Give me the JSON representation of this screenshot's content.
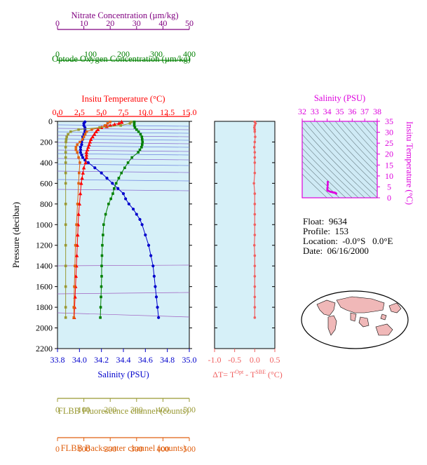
{
  "chart_data": [
    {
      "type": "line",
      "panel": "profile",
      "y_axis": {
        "label": "Pressure (decibar)",
        "range": [
          0,
          2200
        ],
        "inverted": true,
        "ticks": [
          "0",
          "200",
          "400",
          "600",
          "800",
          "1000",
          "1200",
          "1400",
          "1600",
          "1800",
          "2000",
          "2200"
        ]
      },
      "axes": [
        {
          "key": "nitrate",
          "label": "Nitrate Concentration (µm/kg)",
          "color": "#800080",
          "position": "top",
          "range": [
            0,
            50
          ],
          "ticks": [
            "0",
            "10",
            "20",
            "30",
            "40",
            "50"
          ]
        },
        {
          "key": "oxygen",
          "label": "Optode Oxygen Concentration (µm/kg)",
          "color": "#008000",
          "position": "top",
          "range": [
            0,
            400
          ],
          "ticks": [
            "0",
            "100",
            "200",
            "300",
            "400"
          ]
        },
        {
          "key": "temperature",
          "label": "Insitu Temperature (°C)",
          "color": "#ff0000",
          "position": "top",
          "range": [
            0,
            15
          ],
          "ticks": [
            "0.0",
            "2.5",
            "5.0",
            "7.5",
            "10.0",
            "12.5",
            "15.0"
          ]
        },
        {
          "key": "salinity",
          "label": "Salinity (PSU)",
          "color": "#0000cc",
          "position": "bottom",
          "range": [
            33.8,
            35.0
          ],
          "ticks": [
            "33.8",
            "34.0",
            "34.2",
            "34.4",
            "34.6",
            "34.8",
            "35.0"
          ]
        },
        {
          "key": "fluorescence",
          "label": "FLBB Fluorescence channel (counts)",
          "color": "#999933",
          "position": "bottom",
          "range": [
            0,
            500
          ],
          "ticks": [
            "0",
            "100",
            "200",
            "300",
            "400",
            "500"
          ]
        },
        {
          "key": "backscatter",
          "label": "FLBB Backscatter channel (counts)",
          "color": "#e06010",
          "position": "bottom",
          "range": [
            0,
            500
          ],
          "ticks": [
            "0",
            "100",
            "200",
            "300",
            "400",
            "500"
          ]
        }
      ],
      "series": [
        {
          "key": "salinity",
          "color": "#0000cc",
          "marker": "circle",
          "pressure": [
            5,
            20,
            40,
            60,
            80,
            100,
            125,
            150,
            175,
            200,
            225,
            250,
            275,
            300,
            325,
            350,
            375,
            400,
            450,
            500,
            550,
            600,
            650,
            700,
            750,
            800,
            850,
            900,
            950,
            1000,
            1100,
            1200,
            1300,
            1400,
            1500,
            1600,
            1700,
            1800,
            1900
          ],
          "values": [
            34.05,
            34.04,
            34.04,
            34.05,
            34.05,
            34.05,
            34.04,
            34.03,
            34.03,
            34.02,
            34.02,
            34.01,
            34.01,
            34.01,
            34.02,
            34.03,
            34.05,
            34.08,
            34.14,
            34.2,
            34.25,
            34.3,
            34.35,
            34.4,
            34.42,
            34.45,
            34.49,
            34.52,
            34.55,
            34.57,
            34.6,
            34.63,
            34.65,
            34.67,
            34.68,
            34.69,
            34.7,
            34.71,
            34.72
          ]
        },
        {
          "key": "temperature",
          "color": "#ff0000",
          "marker": "triangle",
          "pressure": [
            5,
            10,
            20,
            30,
            40,
            50,
            60,
            80,
            100,
            125,
            150,
            175,
            200,
            225,
            250,
            275,
            300,
            325,
            350,
            400,
            450,
            500,
            550,
            600,
            700,
            800,
            900,
            1000,
            1100,
            1200,
            1300,
            1400,
            1500,
            1600,
            1700,
            1800,
            1900
          ],
          "values": [
            7.3,
            7.3,
            7.0,
            6.5,
            6.0,
            5.6,
            5.0,
            4.6,
            4.4,
            4.2,
            4.0,
            3.8,
            3.7,
            3.6,
            3.5,
            3.4,
            3.3,
            3.3,
            3.3,
            3.2,
            3.0,
            2.9,
            2.8,
            2.7,
            2.6,
            2.5,
            2.4,
            2.35,
            2.3,
            2.25,
            2.2,
            2.15,
            2.1,
            2.05,
            2.0,
            1.95,
            1.9
          ]
        },
        {
          "key": "oxygen",
          "color": "#008000",
          "marker": "square",
          "pressure": [
            5,
            20,
            40,
            60,
            80,
            100,
            125,
            150,
            175,
            200,
            225,
            250,
            275,
            300,
            350,
            400,
            450,
            500,
            550,
            600,
            650,
            700,
            750,
            800,
            900,
            1000,
            1100,
            1200,
            1300,
            1400,
            1500,
            1600,
            1700,
            1800,
            1900
          ],
          "values": [
            233,
            233,
            233,
            235,
            240,
            246,
            252,
            256,
            257,
            258,
            257,
            255,
            250,
            245,
            226,
            214,
            204,
            194,
            186,
            178,
            172,
            168,
            162,
            155,
            146,
            140,
            138,
            136,
            135,
            134,
            134,
            133,
            132,
            131,
            130
          ]
        },
        {
          "key": "backscatter",
          "color": "#e06010",
          "marker": "square",
          "pressure": [
            5,
            20,
            40,
            60,
            80,
            100,
            125,
            150,
            175,
            200,
            225,
            250,
            275,
            300,
            350,
            400,
            500,
            600,
            800,
            1000,
            1200,
            1400,
            1600,
            1800,
            1900
          ],
          "values": [
            200,
            190,
            180,
            160,
            130,
            110,
            105,
            100,
            95,
            85,
            75,
            70,
            70,
            75,
            80,
            85,
            82,
            80,
            76,
            72,
            68,
            66,
            64,
            62,
            62
          ]
        },
        {
          "key": "fluorescence",
          "color": "#999933",
          "marker": "square",
          "pressure": [
            5,
            20,
            40,
            60,
            80,
            100,
            125,
            150,
            175,
            200,
            250,
            300,
            350,
            400,
            500,
            600,
            800,
            1000,
            1200,
            1400,
            1600,
            1800,
            1900
          ],
          "values": [
            280,
            275,
            240,
            160,
            80,
            50,
            40,
            35,
            33,
            32,
            31,
            31,
            31,
            31,
            31,
            31,
            31,
            31,
            31,
            31,
            31,
            31,
            31
          ]
        }
      ],
      "legend": "none"
    },
    {
      "type": "scatter",
      "panel": "delta_t",
      "xlabel": "ΔT= T^Opt - T^SBE (°C)",
      "color": "#f06060",
      "x_range": [
        -1.0,
        0.5
      ],
      "ticks": [
        "-1.0",
        "-0.5",
        "0.0",
        "0.5"
      ],
      "pressure": [
        5,
        20,
        40,
        60,
        80,
        100,
        150,
        200,
        250,
        300,
        350,
        400,
        500,
        600,
        700,
        800,
        900,
        1000,
        1100,
        1200,
        1300,
        1400,
        1500,
        1600,
        1700,
        1800,
        1900
      ],
      "values": [
        0.0,
        0.02,
        0.0,
        -0.01,
        0.0,
        0.0,
        0.01,
        0.0,
        -0.01,
        0.0,
        0.0,
        0.0,
        0.0,
        -0.02,
        0.0,
        0.0,
        0.0,
        0.0,
        0.0,
        -0.01,
        0.0,
        0.0,
        0.0,
        0.0,
        0.0,
        0.0,
        0.0
      ]
    },
    {
      "type": "line",
      "panel": "ts_diagram",
      "xlabel": "Salinity (PSU)",
      "ylabel": "Insitu Temperature (°C)",
      "color": "#dd00dd",
      "x_range": [
        32,
        38
      ],
      "y_range": [
        0,
        35
      ],
      "xticks": [
        "32",
        "33",
        "34",
        "35",
        "36",
        "37",
        "38"
      ],
      "yticks": [
        "0",
        "5",
        "10",
        "15",
        "20",
        "25",
        "30",
        "35"
      ],
      "x": [
        34.05,
        34.04,
        34.02,
        34.01,
        34.03,
        34.08,
        34.2,
        34.3,
        34.4,
        34.45,
        34.52,
        34.57,
        34.63,
        34.67,
        34.7,
        34.72
      ],
      "y": [
        7.3,
        6.0,
        4.4,
        3.6,
        3.3,
        3.2,
        2.9,
        2.7,
        2.6,
        2.5,
        2.4,
        2.35,
        2.25,
        2.15,
        2.0,
        1.9
      ]
    }
  ],
  "float_info": {
    "float_label": "Float:",
    "float_value": "9634",
    "profile_label": "Profile:",
    "profile_value": "153",
    "location_label": "Location:",
    "location_value": "-0.0°S   0.0°E",
    "date_label": "Date:",
    "date_value": "06/16/2000"
  },
  "colors": {
    "plot_background": "#d6f0f8",
    "ts_background": "#cfeaf5",
    "land": "#f0b8b8"
  }
}
